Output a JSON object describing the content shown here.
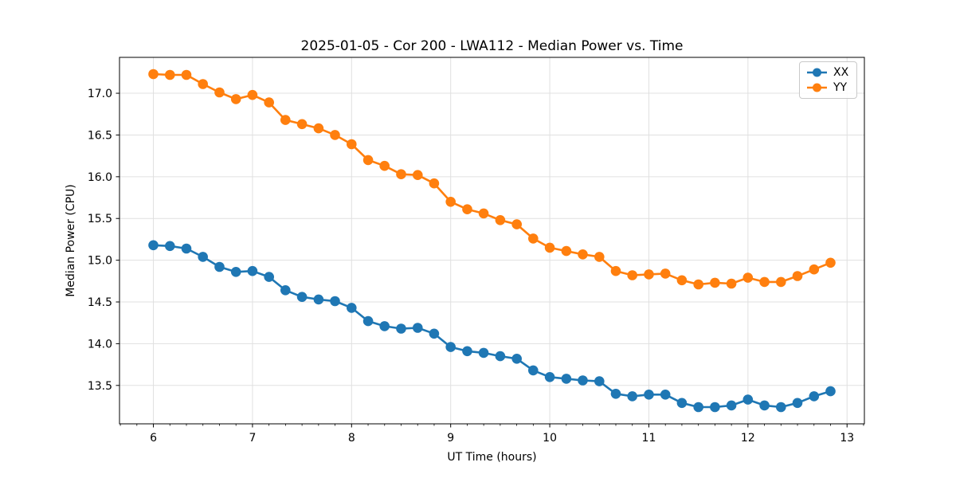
{
  "chart_data": {
    "type": "line",
    "title": "2025-01-05 - Cor 200 - LWA112 - Median Power vs. Time",
    "xlabel": "UT Time (hours)",
    "ylabel": "Median Power (CPU)",
    "xlim": [
      5.658,
      13.175
    ],
    "ylim": [
      13.04,
      17.43
    ],
    "xticks": [
      6,
      7,
      8,
      9,
      10,
      11,
      12,
      13
    ],
    "yticks": [
      13.5,
      14.0,
      14.5,
      15.0,
      15.5,
      16.0,
      16.5,
      17.0
    ],
    "minor_xtick_step": 0.1666667,
    "grid": true,
    "grid_color": "#e0e0e0",
    "legend_position": "upper right",
    "x": [
      6.0,
      6.167,
      6.333,
      6.5,
      6.667,
      6.833,
      7.0,
      7.167,
      7.333,
      7.5,
      7.667,
      7.833,
      8.0,
      8.167,
      8.333,
      8.5,
      8.667,
      8.833,
      9.0,
      9.167,
      9.333,
      9.5,
      9.667,
      9.833,
      10.0,
      10.167,
      10.333,
      10.5,
      10.667,
      10.833,
      11.0,
      11.167,
      11.333,
      11.5,
      11.667,
      11.833,
      12.0,
      12.167,
      12.333,
      12.5,
      12.667,
      12.833
    ],
    "series": [
      {
        "name": "XX",
        "color": "#1f77b4",
        "values": [
          15.18,
          15.17,
          15.14,
          15.04,
          14.92,
          14.86,
          14.87,
          14.8,
          14.64,
          14.56,
          14.53,
          14.51,
          14.43,
          14.27,
          14.21,
          14.18,
          14.19,
          14.12,
          13.96,
          13.91,
          13.89,
          13.85,
          13.82,
          13.68,
          13.6,
          13.58,
          13.56,
          13.55,
          13.4,
          13.37,
          13.39,
          13.39,
          13.29,
          13.24,
          13.24,
          13.26,
          13.33,
          13.26,
          13.24,
          13.29,
          13.37,
          13.43
        ]
      },
      {
        "name": "YY",
        "color": "#ff7f0e",
        "values": [
          17.23,
          17.22,
          17.22,
          17.11,
          17.01,
          16.93,
          16.98,
          16.89,
          16.68,
          16.63,
          16.58,
          16.5,
          16.39,
          16.2,
          16.13,
          16.03,
          16.02,
          15.92,
          15.7,
          15.61,
          15.56,
          15.48,
          15.43,
          15.26,
          15.15,
          15.11,
          15.07,
          15.04,
          14.87,
          14.82,
          14.83,
          14.84,
          14.76,
          14.71,
          14.73,
          14.72,
          14.79,
          14.74,
          14.74,
          14.81,
          14.89,
          14.97
        ]
      }
    ]
  }
}
